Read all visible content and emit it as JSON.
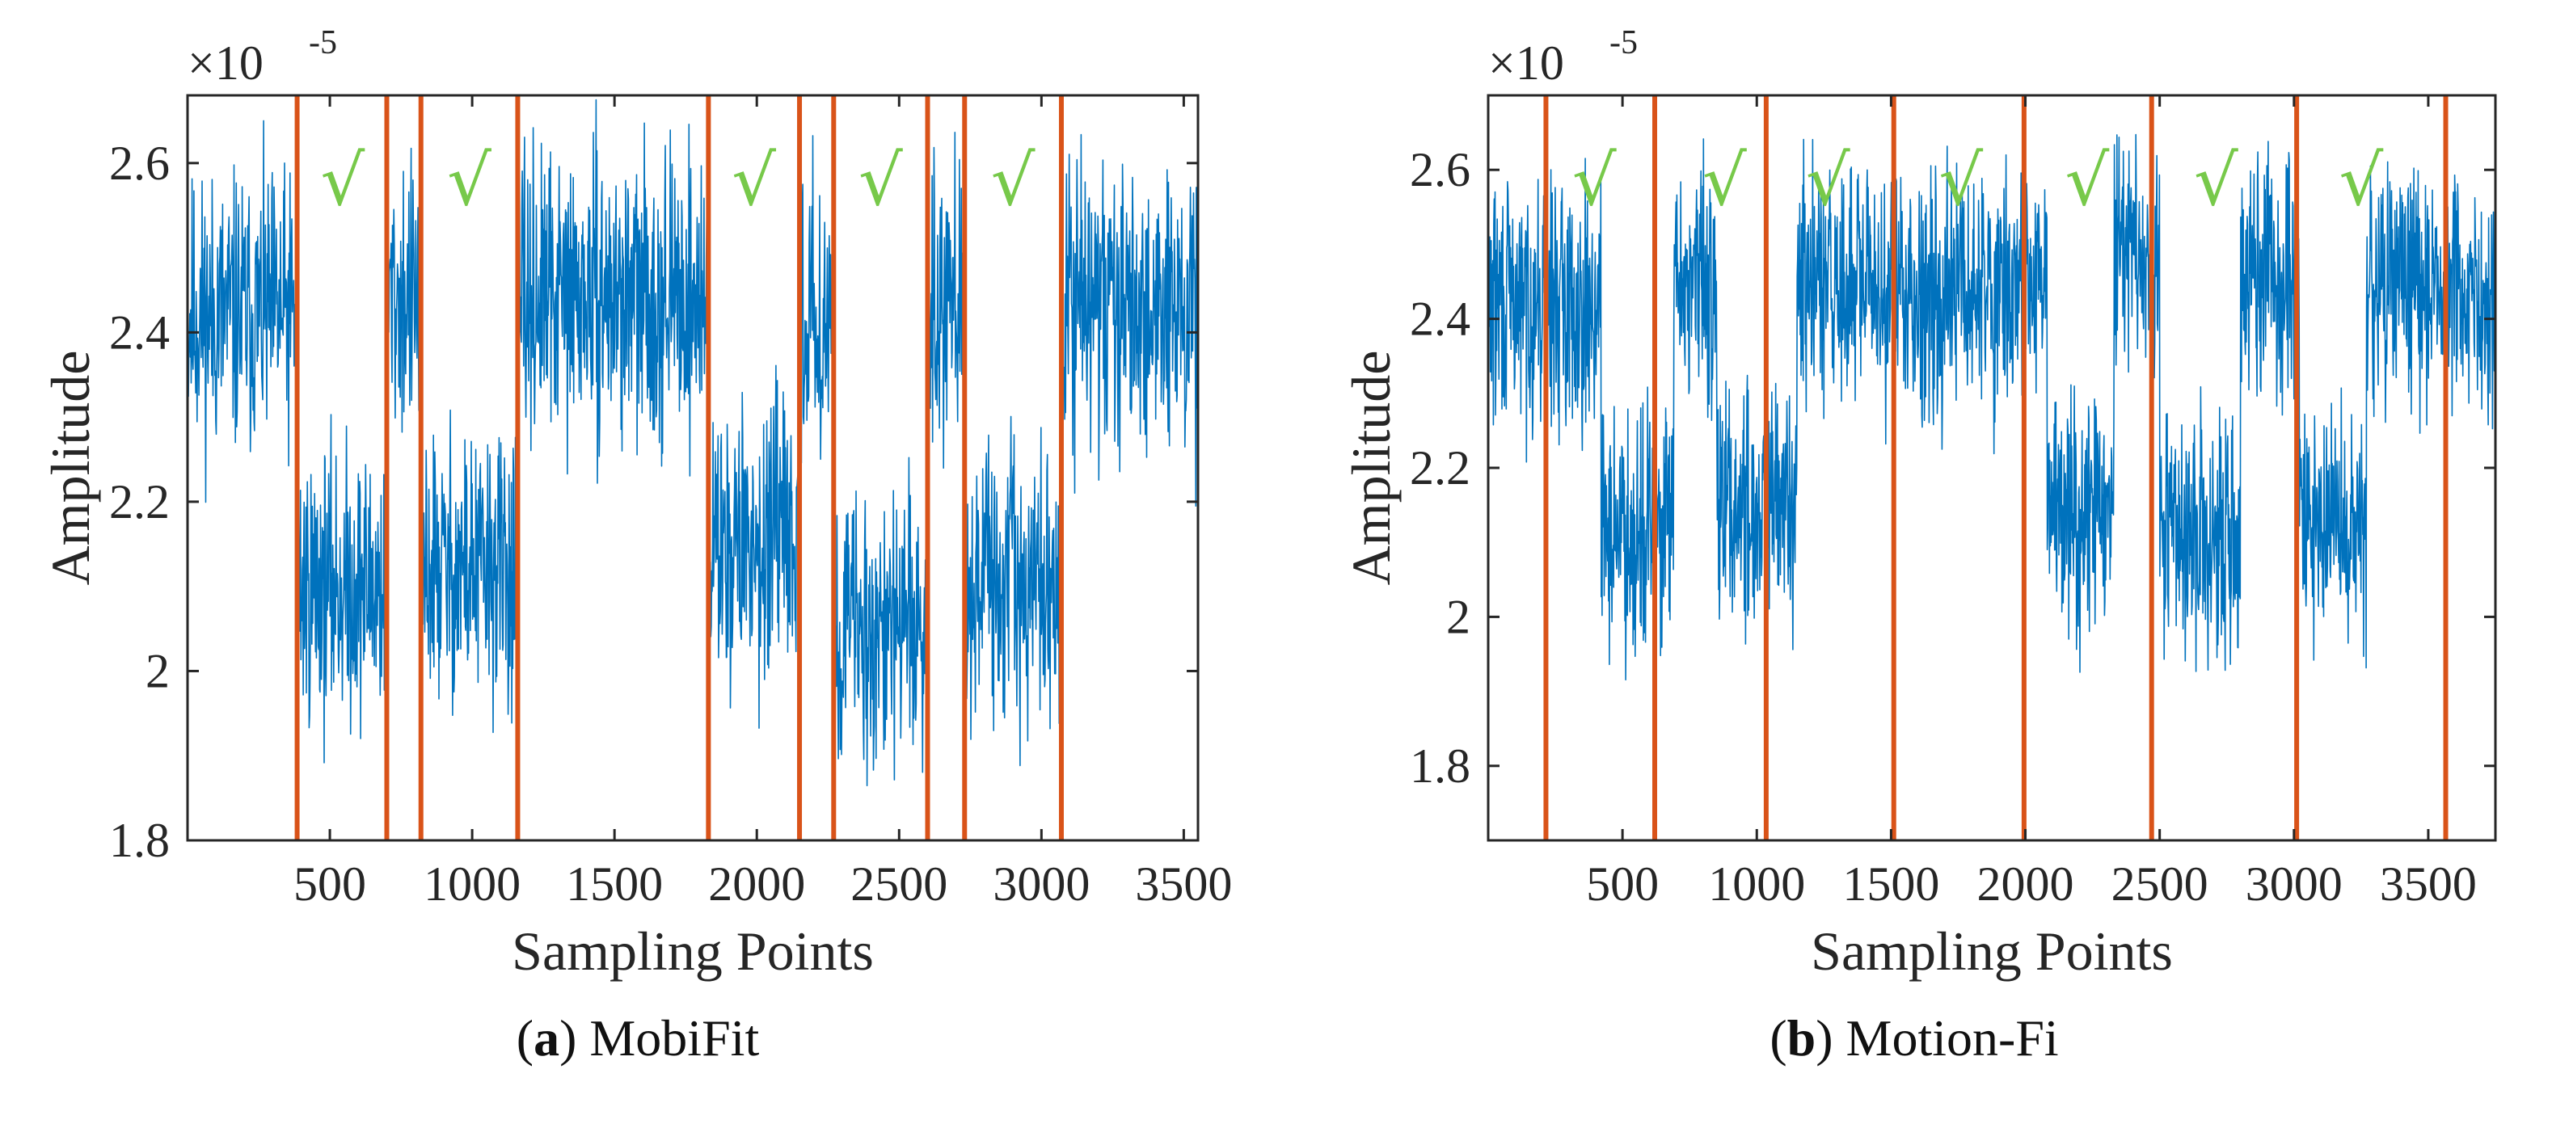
{
  "chart_data": [
    {
      "type": "line",
      "panel_label": "a",
      "caption": "MobiFit",
      "xlabel": "Sampling Points",
      "ylabel": "Amplitude",
      "exponent_label": "×10",
      "exponent_power": "-5",
      "xlim": [
        0,
        3550
      ],
      "ylim": [
        1.8,
        2.68
      ],
      "xticks": [
        500,
        1000,
        1500,
        2000,
        2500,
        3000,
        3500
      ],
      "yticks": [
        1.8,
        2.0,
        2.2,
        2.4,
        2.6
      ],
      "ytick_labels": [
        "1.8",
        "2",
        "2.2",
        "2.4",
        "2.6"
      ],
      "series_color": "#0072BD",
      "noise_amplitude": 0.07,
      "series": [
        {
          "name": "Amplitude",
          "levels": [
            {
              "from": 0,
              "to": 385,
              "mean": 2.42
            },
            {
              "from": 385,
              "to": 700,
              "mean": 2.1
            },
            {
              "from": 700,
              "to": 820,
              "mean": 2.44
            },
            {
              "from": 820,
              "to": 1160,
              "mean": 2.12
            },
            {
              "from": 1160,
              "to": 1830,
              "mean": 2.44
            },
            {
              "from": 1830,
              "to": 2150,
              "mean": 2.15
            },
            {
              "from": 2150,
              "to": 2270,
              "mean": 2.42
            },
            {
              "from": 2270,
              "to": 2600,
              "mean": 2.05
            },
            {
              "from": 2600,
              "to": 2730,
              "mean": 2.45
            },
            {
              "from": 2730,
              "to": 3070,
              "mean": 2.1
            },
            {
              "from": 3070,
              "to": 3550,
              "mean": 2.43
            }
          ]
        }
      ],
      "boundaries": [
        385,
        700,
        820,
        1160,
        1830,
        2150,
        2270,
        2600,
        2730,
        3070
      ],
      "boundary_color": "#D95319",
      "check_marks": [
        {
          "x": 545,
          "text": "√"
        },
        {
          "x": 990,
          "text": "√"
        },
        {
          "x": 1990,
          "text": "√"
        },
        {
          "x": 2435,
          "text": "√"
        },
        {
          "x": 2900,
          "text": "√"
        }
      ],
      "check_color": "#77C94A"
    },
    {
      "type": "line",
      "panel_label": "b",
      "caption": "Motion-Fi",
      "xlabel": "Sampling Points",
      "ylabel": "Amplitude",
      "exponent_label": "×10",
      "exponent_power": "-5",
      "xlim": [
        0,
        3750
      ],
      "ylim": [
        1.7,
        2.7
      ],
      "xticks": [
        500,
        1000,
        1500,
        2000,
        2500,
        3000,
        3500
      ],
      "yticks": [
        1.8,
        2.0,
        2.2,
        2.4,
        2.6
      ],
      "ytick_labels": [
        "1.8",
        "2",
        "2.2",
        "2.4",
        "2.6"
      ],
      "series_color": "#0072BD",
      "noise_amplitude": 0.07,
      "series": [
        {
          "name": "Amplitude",
          "levels": [
            {
              "from": 0,
              "to": 420,
              "mean": 2.42
            },
            {
              "from": 420,
              "to": 690,
              "mean": 2.12
            },
            {
              "from": 690,
              "to": 850,
              "mean": 2.45
            },
            {
              "from": 850,
              "to": 1150,
              "mean": 2.15
            },
            {
              "from": 1150,
              "to": 2080,
              "mean": 2.44
            },
            {
              "from": 2080,
              "to": 2330,
              "mean": 2.15
            },
            {
              "from": 2330,
              "to": 2500,
              "mean": 2.48
            },
            {
              "from": 2500,
              "to": 2800,
              "mean": 2.1
            },
            {
              "from": 2800,
              "to": 3020,
              "mean": 2.46
            },
            {
              "from": 3020,
              "to": 3270,
              "mean": 2.12
            },
            {
              "from": 3270,
              "to": 3750,
              "mean": 2.44
            }
          ]
        }
      ],
      "boundaries": [
        215,
        620,
        1035,
        1510,
        1995,
        2470,
        3010,
        3565
      ],
      "boundary_color": "#D95319",
      "check_marks": [
        {
          "x": 395,
          "text": "√"
        },
        {
          "x": 880,
          "text": "√"
        },
        {
          "x": 1265,
          "text": "√"
        },
        {
          "x": 1760,
          "text": "√"
        },
        {
          "x": 2230,
          "text": "√"
        },
        {
          "x": 2710,
          "text": "√"
        },
        {
          "x": 3250,
          "text": "√"
        }
      ],
      "check_color": "#77C94A"
    }
  ]
}
